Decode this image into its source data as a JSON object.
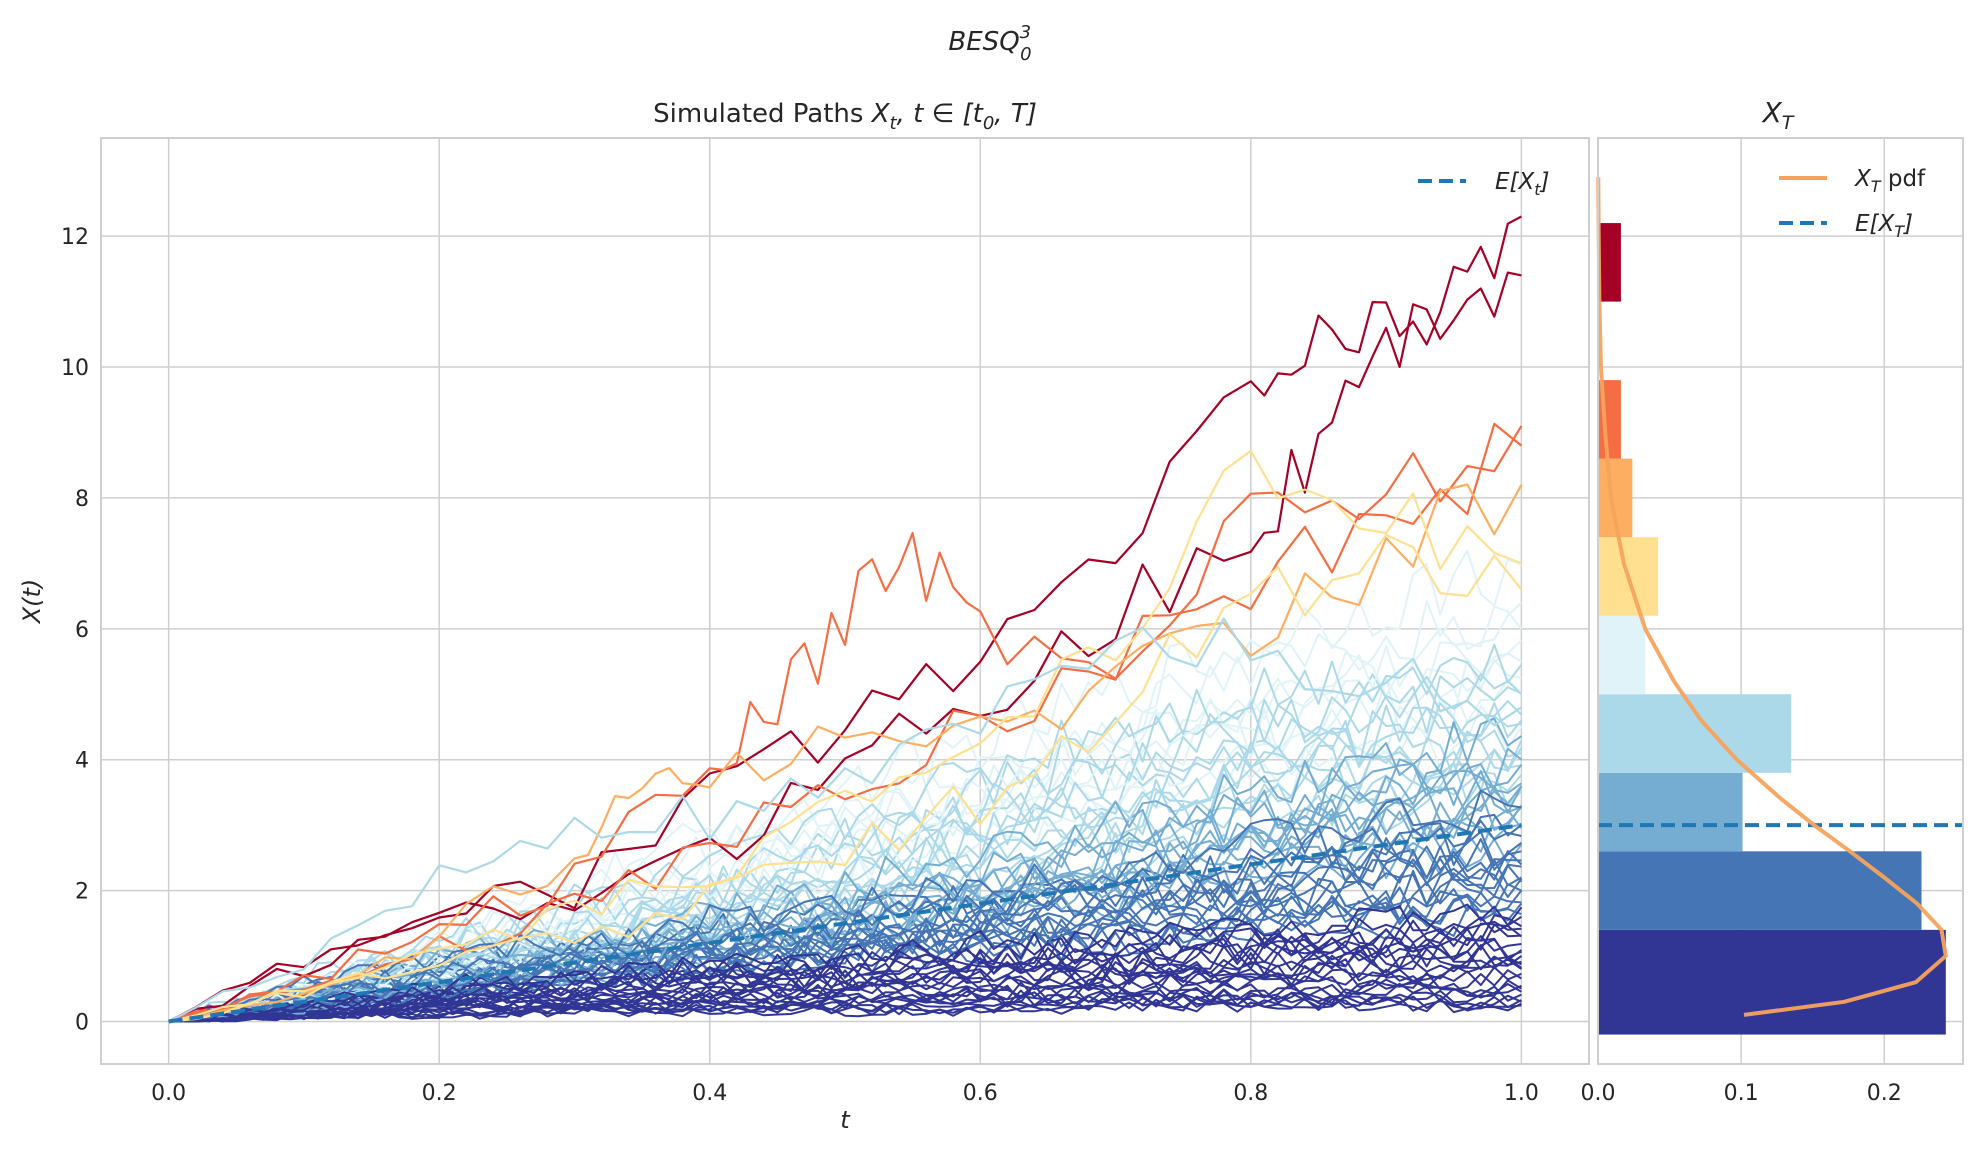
{
  "figure": {
    "suptitle_main": "BESQ",
    "suptitle_sup": "3",
    "suptitle_sub": "0"
  },
  "colors": {
    "grid": "#cfcfcf",
    "spine": "#cfcfcf",
    "mean_line": "#1f77b4",
    "pdf_line": "#f7a35c",
    "bin_colors": [
      "#313695",
      "#4575b4",
      "#74add1",
      "#abd9e9",
      "#e0f3f8",
      "#fee090",
      "#fdae61",
      "#f46d43",
      "#d73027",
      "#a50026"
    ]
  },
  "chart_data": [
    {
      "type": "line",
      "title_prefix": "Simulated Paths ",
      "title_math": "X",
      "title_math_sub": "t",
      "title_math_rest": ", t ∈ [t",
      "title_math_sub2": "0",
      "title_math_end": ", T]",
      "xlabel": "t",
      "ylabel": "X(t)",
      "xlim": [
        -0.05,
        1.05
      ],
      "ylim": [
        -0.65,
        13.5
      ],
      "xticks": [
        0.0,
        0.2,
        0.4,
        0.6,
        0.8,
        1.0
      ],
      "xtick_labels": [
        "0.0",
        "0.2",
        "0.4",
        "0.6",
        "0.8",
        "1.0"
      ],
      "yticks": [
        0,
        2,
        4,
        6,
        8,
        10,
        12
      ],
      "ytick_labels": [
        "0",
        "2",
        "4",
        "6",
        "8",
        "10",
        "12"
      ],
      "grid": true,
      "legend": {
        "placement": "upper-right",
        "label_main": "E[X",
        "label_sub": "t",
        "label_end": "]"
      },
      "mean_line": {
        "x": [
          0.0,
          0.2,
          0.4,
          0.6,
          0.8,
          1.0
        ],
        "y": [
          0.0,
          0.6,
          1.2,
          1.8,
          2.4,
          3.0
        ]
      },
      "highlight_paths": [
        {
          "color_index": 9,
          "x": [
            0.0,
            0.1,
            0.2,
            0.3,
            0.4,
            0.5,
            0.6,
            0.7,
            0.8,
            0.85,
            0.9,
            0.95,
            1.0
          ],
          "y": [
            0.0,
            0.9,
            1.8,
            2.0,
            3.5,
            4.6,
            5.4,
            7.2,
            9.8,
            10.4,
            10.6,
            11.3,
            12.3
          ]
        },
        {
          "color_index": 9,
          "x": [
            0.0,
            0.1,
            0.2,
            0.3,
            0.4,
            0.5,
            0.6,
            0.7,
            0.8,
            0.85,
            0.9,
            0.95,
            1.0
          ],
          "y": [
            0.0,
            0.8,
            1.5,
            1.9,
            2.5,
            4.1,
            5.0,
            6.2,
            7.6,
            8.8,
            10.1,
            11.3,
            11.4
          ]
        },
        {
          "color_index": 7,
          "x": [
            0.0,
            0.1,
            0.2,
            0.3,
            0.4,
            0.45,
            0.5,
            0.55,
            0.6,
            0.7,
            0.8,
            0.9,
            1.0
          ],
          "y": [
            0.0,
            0.6,
            1.4,
            2.2,
            3.9,
            4.8,
            6.2,
            7.2,
            6.0,
            5.4,
            7.8,
            8.2,
            9.1
          ]
        },
        {
          "color_index": 7,
          "x": [
            0.0,
            0.1,
            0.2,
            0.3,
            0.4,
            0.5,
            0.6,
            0.7,
            0.8,
            0.9,
            1.0
          ],
          "y": [
            0.0,
            0.5,
            1.1,
            1.8,
            2.7,
            3.6,
            4.6,
            5.6,
            6.8,
            7.6,
            8.8
          ]
        },
        {
          "color_index": 6,
          "x": [
            0.0,
            0.1,
            0.2,
            0.3,
            0.35,
            0.4,
            0.5,
            0.6,
            0.7,
            0.8,
            0.9,
            1.0
          ],
          "y": [
            0.0,
            0.4,
            1.3,
            2.6,
            3.7,
            3.9,
            4.2,
            4.5,
            5.2,
            6.1,
            7.1,
            8.2
          ]
        },
        {
          "color_index": 5,
          "x": [
            0.0,
            0.1,
            0.2,
            0.3,
            0.4,
            0.5,
            0.6,
            0.7,
            0.8,
            0.9,
            1.0
          ],
          "y": [
            0.0,
            0.5,
            1.0,
            1.6,
            2.3,
            3.2,
            4.4,
            6.0,
            8.6,
            7.8,
            7.0
          ]
        },
        {
          "color_index": 5,
          "x": [
            0.0,
            0.1,
            0.2,
            0.3,
            0.4,
            0.5,
            0.6,
            0.7,
            0.8,
            0.9,
            1.0
          ],
          "y": [
            0.0,
            0.4,
            0.9,
            1.3,
            1.9,
            2.6,
            3.4,
            4.8,
            6.4,
            7.2,
            6.6
          ]
        },
        {
          "color_index": 3,
          "x": [
            0.0,
            0.1,
            0.2,
            0.3,
            0.4,
            0.5,
            0.6,
            0.7,
            0.8,
            0.9,
            1.0
          ],
          "y": [
            0.0,
            0.9,
            2.1,
            3.0,
            3.1,
            3.5,
            4.4,
            6.0,
            5.6,
            5.2,
            4.8
          ]
        }
      ],
      "bulk_paths": {
        "x": [
          0.0,
          0.1,
          0.2,
          0.3,
          0.4,
          0.5,
          0.6,
          0.7,
          0.8,
          0.9,
          1.0
        ],
        "series": [
          {
            "color_index": 4,
            "y": [
              0.0,
              0.5,
              1.1,
              1.9,
              2.6,
              3.3,
              3.9,
              4.6,
              5.3,
              5.9,
              6.4
            ]
          },
          {
            "color_index": 4,
            "y": [
              0.0,
              0.4,
              0.8,
              1.4,
              2.0,
              2.7,
              3.3,
              3.9,
              4.4,
              5.0,
              5.5
            ]
          },
          {
            "color_index": 3,
            "y": [
              0.0,
              0.6,
              1.2,
              1.7,
              2.1,
              2.8,
              3.5,
              4.2,
              4.6,
              4.9,
              5.0
            ]
          },
          {
            "color_index": 3,
            "y": [
              0.0,
              0.5,
              1.0,
              1.3,
              1.8,
              2.4,
              3.0,
              3.5,
              4.1,
              4.3,
              4.6
            ]
          },
          {
            "color_index": 3,
            "y": [
              0.0,
              0.3,
              0.7,
              1.2,
              1.6,
              2.0,
              2.6,
              3.1,
              3.6,
              4.0,
              4.3
            ]
          },
          {
            "color_index": 2,
            "y": [
              0.0,
              0.4,
              0.9,
              1.2,
              1.5,
              1.9,
              2.3,
              2.8,
              3.3,
              3.7,
              4.0
            ]
          },
          {
            "color_index": 2,
            "y": [
              0.0,
              0.3,
              0.6,
              1.0,
              1.3,
              1.6,
              2.0,
              2.4,
              2.9,
              3.3,
              3.6
            ]
          },
          {
            "color_index": 2,
            "y": [
              0.0,
              0.2,
              0.5,
              0.8,
              1.1,
              1.5,
              1.9,
              2.2,
              2.6,
              3.0,
              3.3
            ]
          },
          {
            "color_index": 1,
            "y": [
              0.0,
              0.5,
              0.9,
              1.1,
              1.4,
              1.6,
              1.9,
              2.2,
              2.5,
              2.8,
              3.0
            ]
          },
          {
            "color_index": 1,
            "y": [
              0.0,
              0.3,
              0.6,
              0.9,
              1.1,
              1.4,
              1.6,
              1.9,
              2.1,
              2.4,
              2.6
            ]
          },
          {
            "color_index": 1,
            "y": [
              0.0,
              0.2,
              0.4,
              0.7,
              0.9,
              1.1,
              1.4,
              1.6,
              1.8,
              2.0,
              2.2
            ]
          },
          {
            "color_index": 1,
            "y": [
              0.0,
              0.4,
              0.7,
              0.8,
              1.0,
              1.2,
              1.3,
              1.5,
              1.7,
              1.8,
              2.0
            ]
          },
          {
            "color_index": 0,
            "y": [
              0.0,
              0.2,
              0.4,
              0.6,
              0.8,
              0.9,
              1.1,
              1.2,
              1.3,
              1.4,
              1.6
            ]
          },
          {
            "color_index": 0,
            "y": [
              0.0,
              0.3,
              0.5,
              0.6,
              0.7,
              0.8,
              0.9,
              1.0,
              1.1,
              1.2,
              1.3
            ]
          },
          {
            "color_index": 0,
            "y": [
              0.0,
              0.1,
              0.3,
              0.4,
              0.5,
              0.6,
              0.7,
              0.8,
              0.9,
              1.0,
              1.0
            ]
          },
          {
            "color_index": 0,
            "y": [
              0.0,
              0.2,
              0.3,
              0.3,
              0.4,
              0.5,
              0.5,
              0.6,
              0.7,
              0.7,
              0.8
            ]
          },
          {
            "color_index": 0,
            "y": [
              0.0,
              0.1,
              0.2,
              0.2,
              0.3,
              0.3,
              0.4,
              0.4,
              0.4,
              0.5,
              0.5
            ]
          },
          {
            "color_index": 0,
            "y": [
              0.0,
              0.1,
              0.1,
              0.2,
              0.2,
              0.2,
              0.2,
              0.3,
              0.3,
              0.3,
              0.3
            ]
          }
        ]
      }
    },
    {
      "type": "bar",
      "orientation": "horizontal",
      "title_main": "X",
      "title_sub": "T",
      "xlim": [
        0.0,
        0.255
      ],
      "ylim": [
        -0.65,
        13.5
      ],
      "xticks": [
        0.0,
        0.1,
        0.2
      ],
      "xtick_labels": [
        "0.0",
        "0.1",
        "0.2"
      ],
      "grid": true,
      "legend": {
        "placement": "upper-right",
        "pdf_main": "X",
        "pdf_sub": "T",
        "pdf_end": " pdf",
        "mean_main": "E[X",
        "mean_sub": "T",
        "mean_end": "]"
      },
      "bin_edges": [
        -0.2,
        1.4,
        2.6,
        3.8,
        5.0,
        6.2,
        7.4,
        8.6,
        9.8,
        11.0,
        12.2
      ],
      "densities": [
        0.243,
        0.226,
        0.101,
        0.135,
        0.033,
        0.042,
        0.024,
        0.016,
        0.0,
        0.016
      ],
      "mean_value": 3.0,
      "pdf": {
        "y": [
          0.1,
          0.3,
          0.6,
          1.0,
          1.4,
          1.8,
          2.2,
          2.6,
          3.0,
          3.4,
          4.0,
          4.6,
          5.2,
          6.0,
          7.0,
          8.0,
          9.0,
          10.0,
          11.0,
          12.0,
          12.9
        ],
        "density": [
          0.102,
          0.172,
          0.222,
          0.243,
          0.24,
          0.223,
          0.2,
          0.176,
          0.151,
          0.128,
          0.097,
          0.072,
          0.053,
          0.033,
          0.018,
          0.009,
          0.005,
          0.002,
          0.001,
          0.0005,
          0.0002
        ]
      }
    }
  ]
}
